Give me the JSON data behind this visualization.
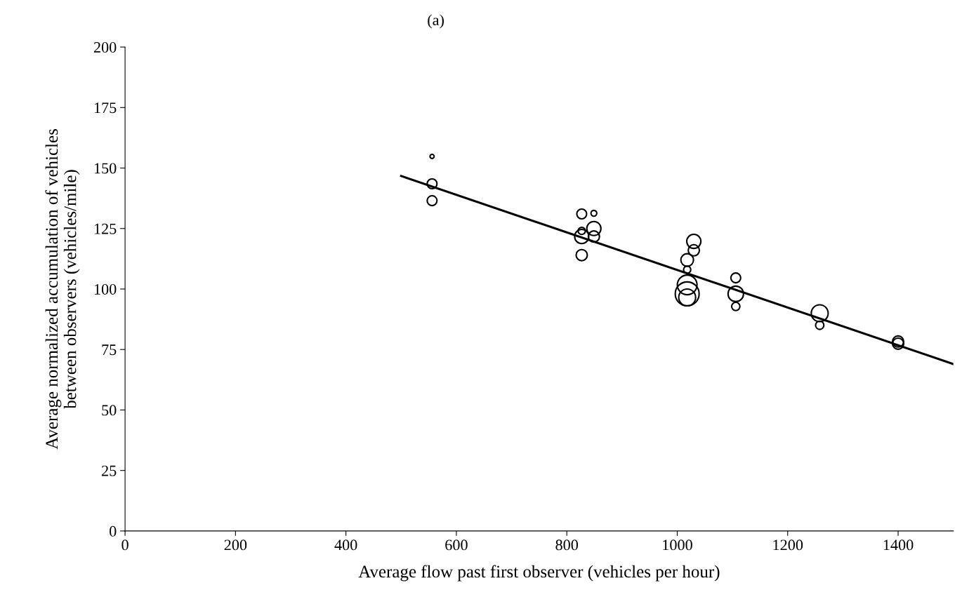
{
  "chart_data": {
    "type": "bubble",
    "title": "(a)",
    "xlabel": "Average flow past first observer (vehicles per hour)",
    "ylabel": "Average normalized accumulation of vehicles\nbetween observers (vehicles/mile)",
    "xlim": [
      0,
      1500
    ],
    "xticks": [
      0,
      200,
      400,
      600,
      800,
      1000,
      1200,
      1400
    ],
    "ylim": [
      0,
      200
    ],
    "yticks": [
      0,
      25,
      50,
      75,
      100,
      125,
      150,
      175,
      200
    ],
    "grid": false,
    "legend": false,
    "series": [
      {
        "color": "#000000",
        "x": [
          556,
          556,
          556,
          827,
          849,
          827,
          849,
          827,
          849,
          827,
          1030,
          1030,
          1018,
          1018,
          1018,
          1018,
          1018,
          1106,
          1106,
          1106,
          1258,
          1258,
          1400,
          1400
        ],
        "values": [
          154.8,
          143.5,
          136.5,
          131,
          131.3,
          124,
          125,
          121.7,
          121.7,
          114,
          119.7,
          116,
          112,
          108,
          101.7,
          98,
          96.5,
          104.6,
          98,
          92.8,
          90,
          85,
          78.3,
          77.4
        ],
        "sizes": [
          0.03,
          0.17,
          0.17,
          0.17,
          0.06,
          0.09,
          0.35,
          0.35,
          0.22,
          0.22,
          0.35,
          0.22,
          0.28,
          0.09,
          0.68,
          1,
          0.5,
          0.17,
          0.42,
          0.12,
          0.5,
          0.12,
          0.22,
          0.22
        ]
      },
      {
        "type": "line",
        "color": "#000000",
        "x": [
          500,
          1500
        ],
        "values": [
          146.7,
          69
        ]
      }
    ]
  }
}
